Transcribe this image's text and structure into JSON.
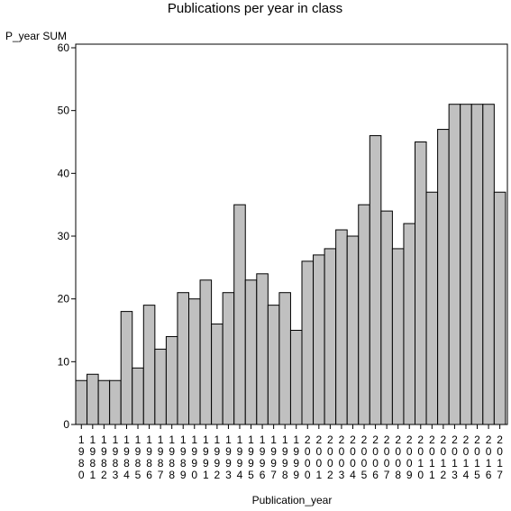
{
  "chart_data": {
    "type": "bar",
    "title": "Publications per year in class",
    "xlabel": "Publication_year",
    "ylabel": "P_year SUM",
    "ylim": [
      0,
      60
    ],
    "yticks": [
      0,
      10,
      20,
      30,
      40,
      50,
      60
    ],
    "grid": false,
    "categories": [
      "1980",
      "1981",
      "1982",
      "1983",
      "1984",
      "1985",
      "1986",
      "1987",
      "1988",
      "1989",
      "1990",
      "1991",
      "1992",
      "1993",
      "1994",
      "1995",
      "1996",
      "1997",
      "1998",
      "1999",
      "2000",
      "2001",
      "2002",
      "2003",
      "2004",
      "2005",
      "2006",
      "2007",
      "2008",
      "2009",
      "2010",
      "2011",
      "2012",
      "2013",
      "2014",
      "2015",
      "2016",
      "2017"
    ],
    "values": [
      7,
      8,
      7,
      7,
      18,
      9,
      19,
      12,
      14,
      21,
      20,
      23,
      16,
      21,
      35,
      23,
      24,
      19,
      21,
      15,
      26,
      27,
      28,
      31,
      30,
      35,
      46,
      34,
      28,
      32,
      45,
      37,
      47,
      51,
      51,
      51,
      51,
      37
    ],
    "bar_color": "#c0c0c0",
    "bar_stroke": "#000000"
  }
}
